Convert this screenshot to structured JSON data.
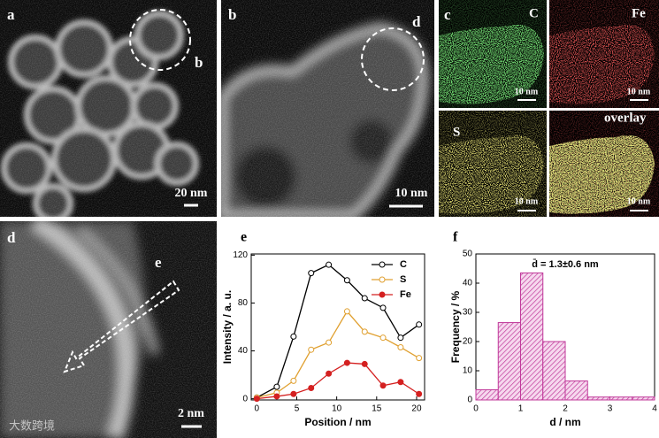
{
  "panels": [
    {
      "label": "a",
      "annotation": "b",
      "scale_bar": "20 nm"
    },
    {
      "label": "b",
      "annotation": "d",
      "scale_bar": "10 nm"
    },
    {
      "label": "c",
      "maps": [
        {
          "element": "C",
          "scale_bar": "10 nm"
        },
        {
          "element": "Fe",
          "scale_bar": "10 nm"
        },
        {
          "element": "S",
          "scale_bar": "10 nm"
        },
        {
          "element": "overlay",
          "scale_bar": "10 nm"
        }
      ]
    },
    {
      "label": "d",
      "annotation": "e",
      "scale_bar": "2 nm"
    }
  ],
  "watermark": "大数跨境",
  "chart_data": [
    {
      "type": "line",
      "panel_label": "e",
      "x_label": "Position / nm",
      "y_label": "Intensity / a. u.",
      "x": [
        0,
        2.5,
        4.6,
        6.8,
        9,
        11.3,
        13.5,
        15.8,
        18,
        20.3
      ],
      "series": [
        {
          "name": "C",
          "color": "#000000",
          "filled": false,
          "values": [
            1,
            10,
            52,
            105,
            112,
            99,
            84,
            76,
            51,
            62
          ]
        },
        {
          "name": "S",
          "color": "#e0a030",
          "filled": false,
          "values": [
            1,
            5,
            15,
            41,
            47,
            73,
            56,
            51,
            43,
            34
          ]
        },
        {
          "name": "Fe",
          "color": "#d42020",
          "filled": true,
          "values": [
            0,
            2,
            4,
            9,
            21,
            30,
            29,
            11,
            14,
            4
          ]
        }
      ],
      "xlim": [
        -0.7,
        21
      ],
      "ylim": [
        -1,
        121
      ],
      "xticks": [
        0,
        5,
        10,
        15,
        20
      ],
      "yticks": [
        0,
        40,
        80,
        120
      ],
      "legend": "upper right"
    },
    {
      "type": "histogram",
      "panel_label": "f",
      "annotation": "d̄ = 1.3±0.6 nm",
      "x_label": "d / nm",
      "y_label": "Frequency / %",
      "bins": [
        0,
        0.5,
        1,
        1.5,
        2,
        2.5,
        3,
        3.5,
        4
      ],
      "values": [
        3.5,
        26.5,
        43.5,
        20,
        6.5,
        1,
        1,
        1
      ],
      "color": "#c0399a",
      "xlim": [
        0,
        4
      ],
      "ylim": [
        0,
        50
      ],
      "xticks": [
        0,
        1,
        2,
        3,
        4
      ],
      "yticks": [
        0,
        10,
        20,
        30,
        40,
        50
      ]
    }
  ]
}
